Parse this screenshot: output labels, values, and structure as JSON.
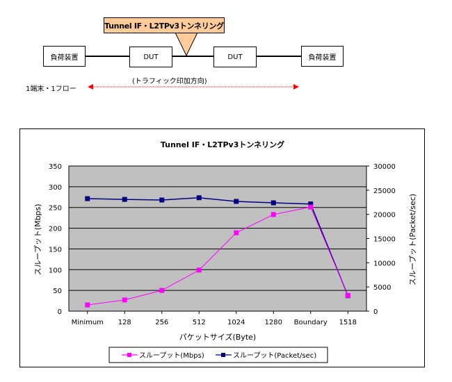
{
  "diagram": {
    "callout_label": "Tunnel IF・L2TPv3トンネリング",
    "callout_color": "#ffcc99",
    "nodes": [
      {
        "label": "負荷装置"
      },
      {
        "label": "DUT"
      },
      {
        "label": "DUT"
      },
      {
        "label": "負荷装置"
      }
    ],
    "flow_label": "1端末・1フロー",
    "direction_label": "(トラフィック印加方向)",
    "arrow_color": "#ff0000"
  },
  "chart_data": {
    "type": "line",
    "title": "Tunnel IF・L2TPv3トンネリング",
    "categories": [
      "Minimum",
      "128",
      "256",
      "512",
      "1024",
      "1280",
      "Boundary",
      "1518"
    ],
    "xlabel": "パケットサイズ(Byte)",
    "ylabel": "スループット(Mbps)",
    "ylabel_right": "スループット(Packet/sec)",
    "ylim": [
      0,
      350
    ],
    "ylim_right": [
      0,
      30000
    ],
    "yticks": [
      "0",
      "50",
      "100",
      "150",
      "200",
      "250",
      "300",
      "350"
    ],
    "yticks_right": [
      "0",
      "5000",
      "10000",
      "15000",
      "20000",
      "25000",
      "30000"
    ],
    "grid": true,
    "plot_background": "#c0c0c0",
    "legend_position": "bottom",
    "series": [
      {
        "name": "スループット(Mbps)",
        "axis": "left",
        "color": "#ff00ff",
        "values": [
          15,
          27,
          50,
          99,
          189,
          233,
          251,
          38
        ]
      },
      {
        "name": "スループット(Packet/sec)",
        "axis": "right",
        "color": "#000080",
        "values": [
          23250,
          23100,
          22970,
          23440,
          22680,
          22390,
          22150,
          3200
        ]
      }
    ]
  }
}
